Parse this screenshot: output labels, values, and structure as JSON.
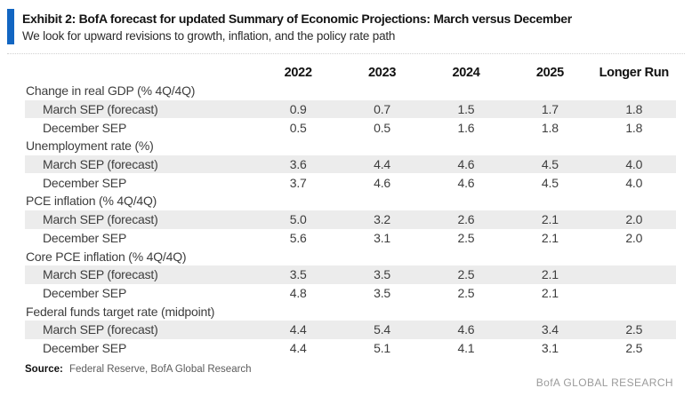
{
  "exhibit": {
    "title": "Exhibit 2: BofA forecast for updated Summary of Economic Projections: March versus December",
    "subtitle": "We look for upward revisions to growth, inflation, and the policy rate path"
  },
  "table": {
    "columns": [
      "2022",
      "2023",
      "2024",
      "2025",
      "Longer Run"
    ],
    "sections": [
      {
        "label": "Change in real GDP (% 4Q/4Q)",
        "rows": [
          {
            "label": "March SEP (forecast)",
            "shaded": true,
            "values": [
              "0.9",
              "0.7",
              "1.5",
              "1.7",
              "1.8"
            ]
          },
          {
            "label": "December SEP",
            "shaded": false,
            "values": [
              "0.5",
              "0.5",
              "1.6",
              "1.8",
              "1.8"
            ]
          }
        ]
      },
      {
        "label": "Unemployment rate (%)",
        "rows": [
          {
            "label": "March SEP (forecast)",
            "shaded": true,
            "values": [
              "3.6",
              "4.4",
              "4.6",
              "4.5",
              "4.0"
            ]
          },
          {
            "label": "December SEP",
            "shaded": false,
            "values": [
              "3.7",
              "4.6",
              "4.6",
              "4.5",
              "4.0"
            ]
          }
        ]
      },
      {
        "label": "PCE inflation (% 4Q/4Q)",
        "rows": [
          {
            "label": "March SEP (forecast)",
            "shaded": true,
            "values": [
              "5.0",
              "3.2",
              "2.6",
              "2.1",
              "2.0"
            ]
          },
          {
            "label": "December SEP",
            "shaded": false,
            "values": [
              "5.6",
              "3.1",
              "2.5",
              "2.1",
              "2.0"
            ]
          }
        ]
      },
      {
        "label": "Core PCE inflation (% 4Q/4Q)",
        "rows": [
          {
            "label": "March SEP (forecast)",
            "shaded": true,
            "values": [
              "3.5",
              "3.5",
              "2.5",
              "2.1",
              ""
            ]
          },
          {
            "label": "December SEP",
            "shaded": false,
            "values": [
              "4.8",
              "3.5",
              "2.5",
              "2.1",
              ""
            ]
          }
        ]
      },
      {
        "label": "Federal funds target rate (midpoint)",
        "rows": [
          {
            "label": "March SEP (forecast)",
            "shaded": true,
            "values": [
              "4.4",
              "5.4",
              "4.6",
              "3.4",
              "2.5"
            ]
          },
          {
            "label": "December SEP",
            "shaded": false,
            "values": [
              "4.4",
              "5.1",
              "4.1",
              "3.1",
              "2.5"
            ]
          }
        ]
      }
    ]
  },
  "footer": {
    "source_label": "Source:",
    "source_text": "Federal Reserve, BofA Global Research",
    "brand": "BofA GLOBAL RESEARCH"
  },
  "colors": {
    "accent_blue": "#1266c2",
    "row_shade": "#ececec",
    "brand_gray": "#9b9b9b"
  },
  "chart_data": {
    "type": "table",
    "title": "Exhibit 2: BofA forecast for updated Summary of Economic Projections: March versus December",
    "subtitle": "We look for upward revisions to growth, inflation, and the policy rate path",
    "columns": [
      "",
      "2022",
      "2023",
      "2024",
      "2025",
      "Longer Run"
    ],
    "rows": [
      [
        "Change in real GDP (% 4Q/4Q)",
        "",
        "",
        "",
        "",
        ""
      ],
      [
        "March SEP (forecast)",
        "0.9",
        "0.7",
        "1.5",
        "1.7",
        "1.8"
      ],
      [
        "December SEP",
        "0.5",
        "0.5",
        "1.6",
        "1.8",
        "1.8"
      ],
      [
        "Unemployment rate (%)",
        "",
        "",
        "",
        "",
        ""
      ],
      [
        "March SEP (forecast)",
        "3.6",
        "4.4",
        "4.6",
        "4.5",
        "4.0"
      ],
      [
        "December SEP",
        "3.7",
        "4.6",
        "4.6",
        "4.5",
        "4.0"
      ],
      [
        "PCE inflation (% 4Q/4Q)",
        "",
        "",
        "",
        "",
        ""
      ],
      [
        "March SEP (forecast)",
        "5.0",
        "3.2",
        "2.6",
        "2.1",
        "2.0"
      ],
      [
        "December SEP",
        "5.6",
        "3.1",
        "2.5",
        "2.1",
        "2.0"
      ],
      [
        "Core PCE inflation (% 4Q/4Q)",
        "",
        "",
        "",
        "",
        ""
      ],
      [
        "March SEP (forecast)",
        "3.5",
        "3.5",
        "2.5",
        "2.1",
        ""
      ],
      [
        "December SEP",
        "4.8",
        "3.5",
        "2.5",
        "2.1",
        ""
      ],
      [
        "Federal funds target rate (midpoint)",
        "",
        "",
        "",
        "",
        ""
      ],
      [
        "March SEP (forecast)",
        "4.4",
        "5.4",
        "4.6",
        "3.4",
        "2.5"
      ],
      [
        "December SEP",
        "4.4",
        "5.1",
        "4.1",
        "3.1",
        "2.5"
      ]
    ],
    "source": "Federal Reserve, BofA Global Research",
    "legend_position": "none",
    "grid": false
  }
}
